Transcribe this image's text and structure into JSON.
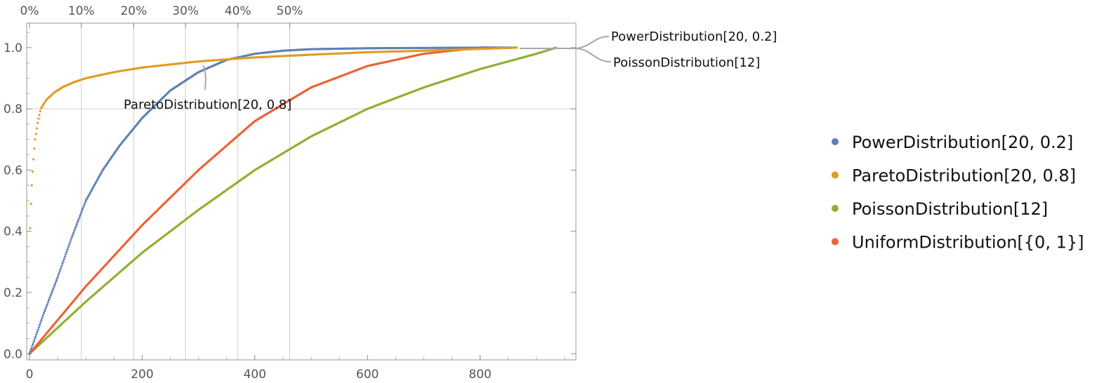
{
  "chart_data": {
    "type": "scatter",
    "title": "",
    "xlabel": "",
    "ylabel": "",
    "xlim": [
      -5,
      970
    ],
    "ylim": [
      -0.02,
      1.08
    ],
    "x_ticks": [
      0,
      200,
      400,
      600,
      800
    ],
    "x_tick_labels": [
      "0",
      "200",
      "400",
      "600",
      "800"
    ],
    "y_ticks": [
      0.0,
      0.2,
      0.4,
      0.6,
      0.8,
      1.0
    ],
    "y_tick_labels": [
      "0.0",
      "0.2",
      "0.4",
      "0.6",
      "0.8",
      "1.0"
    ],
    "top_ticks": [
      0,
      92,
      185,
      277,
      370,
      462
    ],
    "top_tick_labels": [
      "0%",
      "10%",
      "20%",
      "30%",
      "40%",
      "50%"
    ],
    "grid": {
      "vertical_at": [
        92,
        185,
        277,
        370,
        462
      ],
      "horizontal_at": [
        0.8
      ]
    },
    "legend_position": "right",
    "series": [
      {
        "name": "PowerDistribution[20, 0.2]",
        "color": "#5e81b5",
        "x_max": 865,
        "x": [
          0,
          25,
          50,
          75,
          100,
          130,
          160,
          200,
          250,
          300,
          350,
          400,
          450,
          500,
          600,
          700,
          800,
          865
        ],
        "values": [
          0.0,
          0.13,
          0.25,
          0.38,
          0.5,
          0.6,
          0.68,
          0.77,
          0.86,
          0.92,
          0.96,
          0.98,
          0.99,
          0.995,
          0.998,
          0.999,
          1.0,
          1.0
        ]
      },
      {
        "name": "ParetoDistribution[20, 0.8]",
        "color": "#e19c24",
        "x_max": 865,
        "x": [
          1,
          2,
          4,
          6,
          8,
          10,
          15,
          20,
          30,
          45,
          60,
          80,
          100,
          150,
          200,
          300,
          400,
          500,
          600,
          700,
          800,
          865
        ],
        "values": [
          0.41,
          0.47,
          0.55,
          0.61,
          0.66,
          0.7,
          0.76,
          0.8,
          0.83,
          0.855,
          0.872,
          0.888,
          0.9,
          0.92,
          0.935,
          0.955,
          0.968,
          0.977,
          0.985,
          0.99,
          0.996,
          1.0
        ]
      },
      {
        "name": "PoissonDistribution[12]",
        "color": "#8fb032",
        "x_max": 935,
        "x": [
          0,
          100,
          200,
          300,
          400,
          500,
          600,
          700,
          800,
          900,
          935
        ],
        "values": [
          0.0,
          0.17,
          0.33,
          0.47,
          0.6,
          0.71,
          0.8,
          0.87,
          0.93,
          0.98,
          1.0
        ]
      },
      {
        "name": "UniformDistribution[{0, 1}]",
        "color": "#eb6235",
        "x_max": 820,
        "x": [
          0,
          100,
          200,
          300,
          400,
          500,
          600,
          700,
          800,
          820
        ],
        "values": [
          0.0,
          0.22,
          0.42,
          0.6,
          0.76,
          0.87,
          0.94,
          0.98,
          1.0,
          1.0
        ]
      }
    ],
    "annotations": [
      {
        "text": "PowerDistribution[20, 0.2]"
      },
      {
        "text": "PoissonDistribution[12]"
      },
      {
        "text": "ParetoDistribution[20, 0.8]"
      }
    ]
  }
}
